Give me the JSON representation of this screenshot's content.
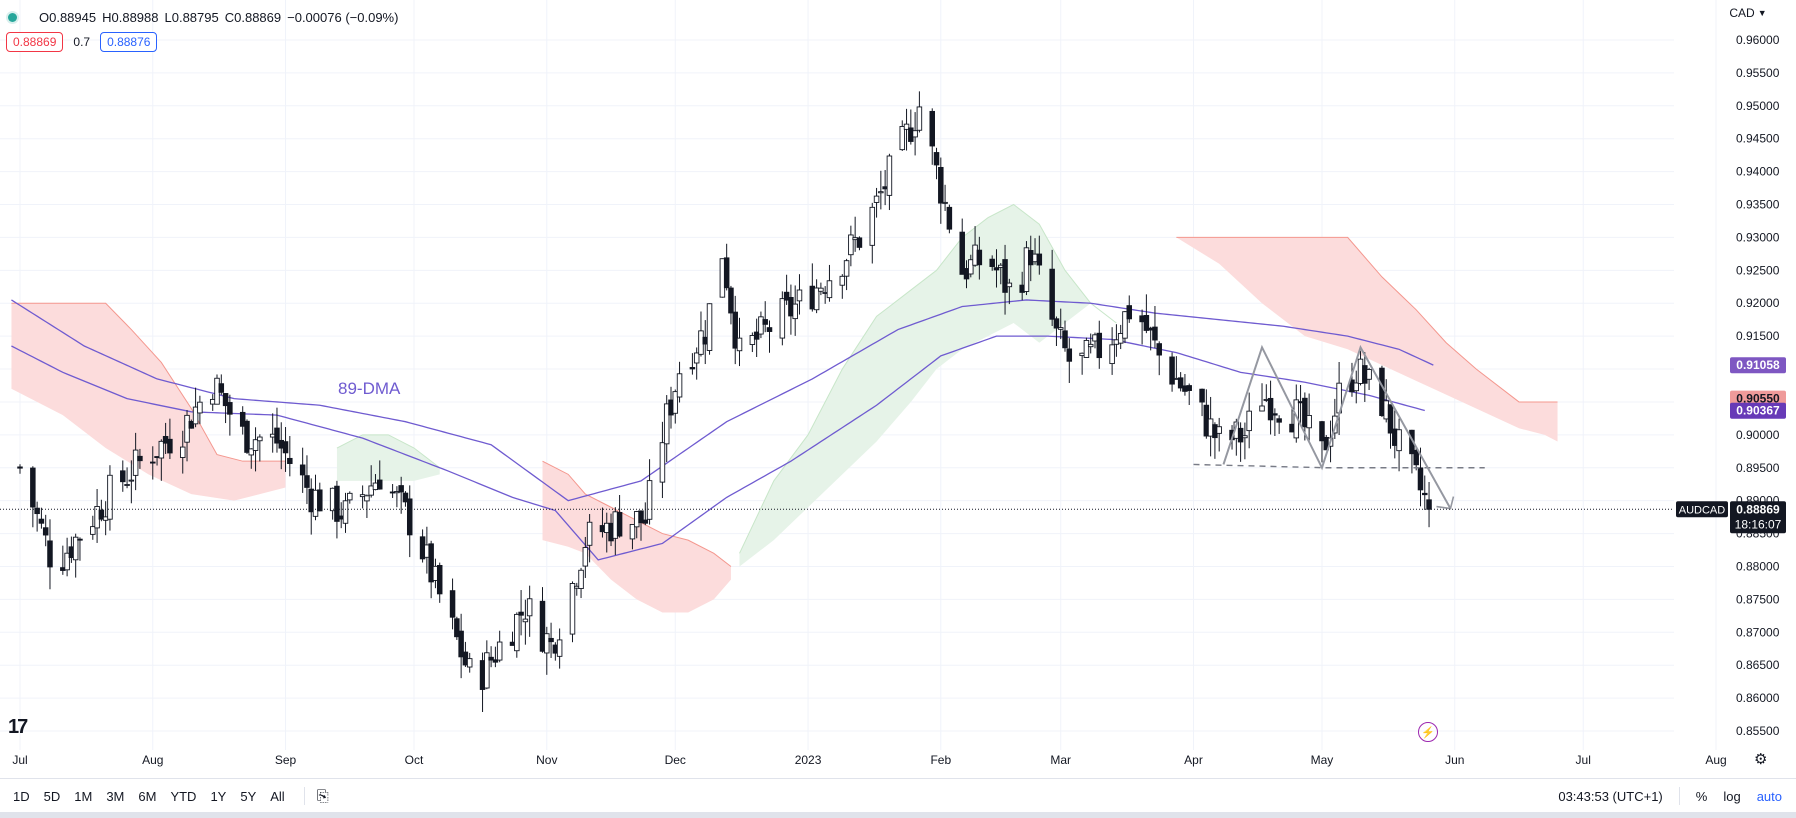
{
  "ohlc": {
    "open": "O0.88945",
    "high": "H0.88988",
    "low": "L0.88795",
    "close": "C0.88869",
    "change": "−0.00076 (−0.09%)"
  },
  "quote": {
    "bid": "0.88869",
    "spread": "0.7",
    "ask": "0.88876"
  },
  "currency": "CAD",
  "annotation_89dma": "89-DMA",
  "price_labels": [
    {
      "text": "0.91058",
      "value": 0.91058,
      "color": "#7e57c2"
    },
    {
      "text": "0.90550",
      "value": 0.9055,
      "color": "#ef9a9a"
    },
    {
      "text": "0.90367",
      "value": 0.90367,
      "color": "#673ab7"
    }
  ],
  "symbol_label": "AUDCAD",
  "last_price": "0.88869",
  "countdown": "18:16:07",
  "colors": {
    "up": "#ffffff",
    "down": "#131722",
    "ma": "#6f5bd0",
    "cloud_red": "#fcdcdc",
    "cloud_green": "#e6f3e8",
    "span_red": "#f4978e",
    "span_green": "#c8e6c9"
  },
  "chart_data": {
    "type": "candlestick",
    "ylim": [
      0.853,
      0.9595
    ],
    "ytick_values": [
      0.855,
      0.86,
      0.865,
      0.87,
      0.875,
      0.88,
      0.885,
      0.89,
      0.895,
      0.9,
      0.905,
      0.91,
      0.915,
      0.92,
      0.925,
      0.93,
      0.935,
      0.94,
      0.945,
      0.95,
      0.955,
      0.96
    ],
    "yticks": [
      "0.85500",
      "0.86000",
      "0.86500",
      "0.87000",
      "0.87500",
      "0.88000",
      "0.88500",
      "0.89000",
      "0.89500",
      "0.90000",
      "0.90500",
      "0.91000",
      "0.91500",
      "0.92000",
      "0.92500",
      "0.93000",
      "0.93500",
      "0.94000",
      "0.94500",
      "0.95000",
      "0.95500",
      "0.96000"
    ],
    "xticks": [
      {
        "label": "Jul",
        "day": 0
      },
      {
        "label": "Aug",
        "day": 31
      },
      {
        "label": "Sep",
        "day": 62
      },
      {
        "label": "Oct",
        "day": 92
      },
      {
        "label": "Nov",
        "day": 123
      },
      {
        "label": "Dec",
        "day": 153
      },
      {
        "label": "2023",
        "day": 184
      },
      {
        "label": "Feb",
        "day": 215
      },
      {
        "label": "Mar",
        "day": 243
      },
      {
        "label": "Apr",
        "day": 274
      },
      {
        "label": "May",
        "day": 304
      },
      {
        "label": "Jun",
        "day": 335
      },
      {
        "label": "Jul",
        "day": 365
      },
      {
        "label": "Aug",
        "day": 396
      }
    ],
    "close_anchors": [
      [
        0,
        0.895
      ],
      [
        8,
        0.88
      ],
      [
        14,
        0.885
      ],
      [
        22,
        0.892
      ],
      [
        30,
        0.897
      ],
      [
        38,
        0.901
      ],
      [
        45,
        0.908
      ],
      [
        52,
        0.9
      ],
      [
        60,
        0.899
      ],
      [
        68,
        0.891
      ],
      [
        76,
        0.888
      ],
      [
        84,
        0.894
      ],
      [
        92,
        0.886
      ],
      [
        100,
        0.872
      ],
      [
        106,
        0.862
      ],
      [
        112,
        0.868
      ],
      [
        118,
        0.874
      ],
      [
        124,
        0.868
      ],
      [
        128,
        0.875
      ],
      [
        132,
        0.884
      ],
      [
        140,
        0.887
      ],
      [
        146,
        0.887
      ],
      [
        150,
        0.9
      ],
      [
        154,
        0.91
      ],
      [
        160,
        0.916
      ],
      [
        164,
        0.928
      ],
      [
        168,
        0.912
      ],
      [
        176,
        0.917
      ],
      [
        182,
        0.92
      ],
      [
        190,
        0.925
      ],
      [
        196,
        0.93
      ],
      [
        200,
        0.935
      ],
      [
        206,
        0.944
      ],
      [
        210,
        0.95
      ],
      [
        214,
        0.94
      ],
      [
        220,
        0.925
      ],
      [
        226,
        0.927
      ],
      [
        232,
        0.921
      ],
      [
        236,
        0.928
      ],
      [
        242,
        0.915
      ],
      [
        246,
        0.91
      ],
      [
        254,
        0.914
      ],
      [
        260,
        0.92
      ],
      [
        266,
        0.912
      ],
      [
        274,
        0.905
      ],
      [
        280,
        0.899
      ],
      [
        286,
        0.9
      ],
      [
        290,
        0.906
      ],
      [
        298,
        0.903
      ],
      [
        304,
        0.897
      ],
      [
        308,
        0.906
      ],
      [
        312,
        0.91
      ],
      [
        318,
        0.905
      ],
      [
        322,
        0.898
      ],
      [
        326,
        0.893
      ],
      [
        329,
        0.8887
      ]
    ],
    "ma_anchors": [
      [
        -2,
        0.9135
      ],
      [
        10,
        0.9095
      ],
      [
        25,
        0.9055
      ],
      [
        40,
        0.9035
      ],
      [
        60,
        0.903
      ],
      [
        80,
        0.8995
      ],
      [
        100,
        0.8945
      ],
      [
        115,
        0.8905
      ],
      [
        125,
        0.8885
      ],
      [
        135,
        0.881
      ],
      [
        150,
        0.8835
      ],
      [
        165,
        0.8905
      ],
      [
        180,
        0.896
      ],
      [
        200,
        0.9045
      ],
      [
        215,
        0.912
      ],
      [
        228,
        0.915
      ],
      [
        240,
        0.915
      ],
      [
        255,
        0.9145
      ],
      [
        270,
        0.9125
      ],
      [
        285,
        0.9095
      ],
      [
        300,
        0.908
      ],
      [
        315,
        0.906
      ],
      [
        328,
        0.9037
      ]
    ],
    "ma2_anchors": [
      [
        -2,
        0.9205
      ],
      [
        15,
        0.9135
      ],
      [
        32,
        0.9085
      ],
      [
        50,
        0.9055
      ],
      [
        70,
        0.9045
      ],
      [
        90,
        0.902
      ],
      [
        110,
        0.8985
      ],
      [
        128,
        0.89
      ],
      [
        145,
        0.893
      ],
      [
        165,
        0.902
      ],
      [
        185,
        0.9085
      ],
      [
        205,
        0.916
      ],
      [
        220,
        0.9195
      ],
      [
        235,
        0.9205
      ],
      [
        250,
        0.92
      ],
      [
        265,
        0.9185
      ],
      [
        280,
        0.9175
      ],
      [
        295,
        0.9165
      ],
      [
        310,
        0.915
      ],
      [
        322,
        0.913
      ],
      [
        330,
        0.9106
      ]
    ],
    "cloud_red_regions": [
      {
        "top": [
          [
            -2,
            0.92
          ],
          [
            20,
            0.92
          ],
          [
            26,
            0.916
          ],
          [
            33,
            0.911
          ],
          [
            40,
            0.904
          ],
          [
            46,
            0.897
          ],
          [
            52,
            0.896
          ],
          [
            56,
            0.896
          ],
          [
            62,
            0.896
          ]
        ],
        "bottom": [
          [
            -2,
            0.907
          ],
          [
            10,
            0.903
          ],
          [
            20,
            0.898
          ],
          [
            30,
            0.894
          ],
          [
            40,
            0.891
          ],
          [
            50,
            0.89
          ],
          [
            56,
            0.891
          ],
          [
            62,
            0.892
          ]
        ]
      },
      {
        "top": [
          [
            122,
            0.896
          ],
          [
            128,
            0.894
          ],
          [
            132,
            0.891
          ],
          [
            138,
            0.889
          ],
          [
            144,
            0.887
          ],
          [
            150,
            0.885
          ],
          [
            156,
            0.884
          ],
          [
            162,
            0.882
          ],
          [
            166,
            0.88
          ]
        ],
        "bottom": [
          [
            122,
            0.884
          ],
          [
            128,
            0.883
          ],
          [
            132,
            0.882
          ],
          [
            138,
            0.878
          ],
          [
            144,
            0.875
          ],
          [
            150,
            0.873
          ],
          [
            156,
            0.873
          ],
          [
            162,
            0.875
          ],
          [
            166,
            0.878
          ]
        ]
      },
      {
        "top": [
          [
            270,
            0.93
          ],
          [
            285,
            0.93
          ],
          [
            300,
            0.93
          ],
          [
            310,
            0.93
          ],
          [
            318,
            0.924
          ],
          [
            326,
            0.919
          ],
          [
            333,
            0.914
          ],
          [
            340,
            0.91
          ],
          [
            350,
            0.905
          ],
          [
            356,
            0.905
          ],
          [
            359,
            0.905
          ]
        ],
        "bottom": [
          [
            270,
            0.93
          ],
          [
            280,
            0.926
          ],
          [
            290,
            0.92
          ],
          [
            300,
            0.915
          ],
          [
            310,
            0.913
          ],
          [
            320,
            0.91
          ],
          [
            330,
            0.907
          ],
          [
            340,
            0.904
          ],
          [
            350,
            0.901
          ],
          [
            356,
            0.9
          ],
          [
            359,
            0.899
          ]
        ]
      }
    ],
    "cloud_green_regions": [
      {
        "top": [
          [
            74,
            0.898
          ],
          [
            80,
            0.9
          ],
          [
            86,
            0.9
          ],
          [
            92,
            0.898
          ],
          [
            98,
            0.895
          ]
        ],
        "bottom": [
          [
            74,
            0.893
          ],
          [
            80,
            0.893
          ],
          [
            86,
            0.893
          ],
          [
            92,
            0.893
          ],
          [
            98,
            0.894
          ]
        ]
      },
      {
        "top": [
          [
            168,
            0.882
          ],
          [
            176,
            0.893
          ],
          [
            184,
            0.9
          ],
          [
            192,
            0.91
          ],
          [
            200,
            0.918
          ],
          [
            208,
            0.922
          ],
          [
            214,
            0.925
          ],
          [
            220,
            0.93
          ],
          [
            226,
            0.933
          ],
          [
            232,
            0.935
          ],
          [
            238,
            0.932
          ],
          [
            244,
            0.925
          ],
          [
            250,
            0.92
          ],
          [
            256,
            0.917
          ]
        ],
        "bottom": [
          [
            168,
            0.88
          ],
          [
            176,
            0.884
          ],
          [
            184,
            0.889
          ],
          [
            192,
            0.894
          ],
          [
            200,
            0.899
          ],
          [
            208,
            0.905
          ],
          [
            214,
            0.91
          ],
          [
            220,
            0.913
          ],
          [
            226,
            0.915
          ],
          [
            232,
            0.917
          ],
          [
            238,
            0.914
          ],
          [
            244,
            0.917
          ],
          [
            250,
            0.92
          ],
          [
            256,
            0.917
          ]
        ]
      }
    ],
    "pattern": {
      "dashed_neckline": [
        [
          274,
          0.8955
        ],
        [
          305,
          0.895
        ],
        [
          326,
          0.895
        ],
        [
          342,
          0.895
        ]
      ],
      "zigzag": [
        [
          281,
          0.8955
        ],
        [
          290,
          0.9133
        ],
        [
          304,
          0.895
        ],
        [
          313,
          0.9133
        ],
        [
          334,
          0.8888
        ]
      ],
      "arrow_end": [
        334,
        0.8888
      ]
    }
  }
}
